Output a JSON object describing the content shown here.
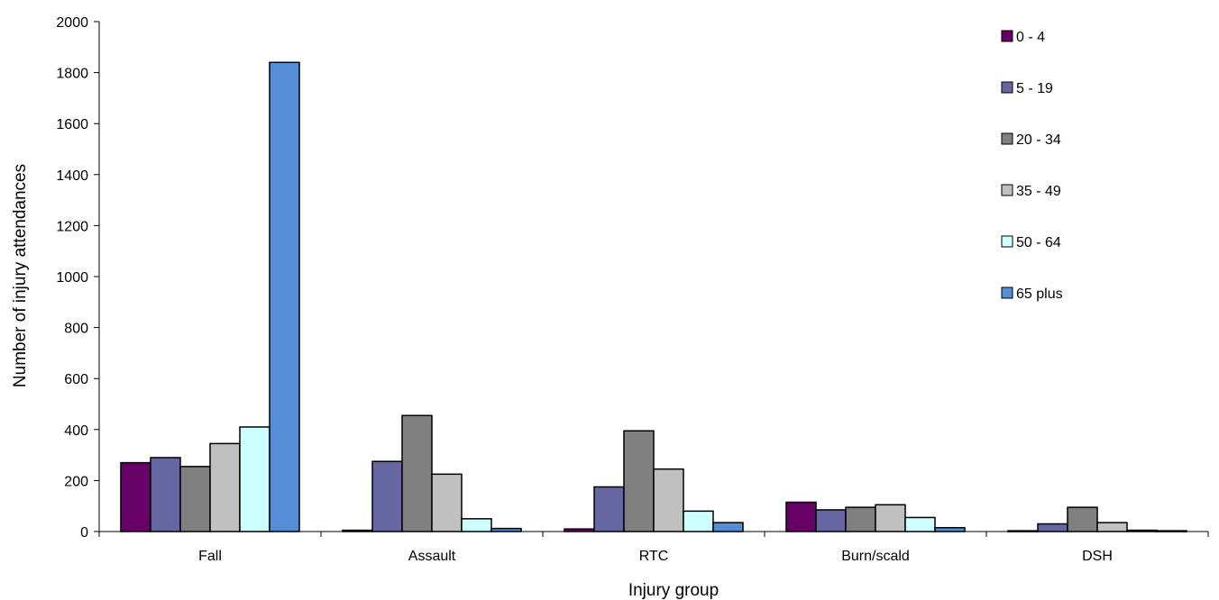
{
  "chart_data": {
    "type": "bar",
    "title": "",
    "xlabel": "Injury group",
    "ylabel": "Number of injury attendances",
    "ylim": [
      0,
      2000
    ],
    "yticks": [
      0,
      200,
      400,
      600,
      800,
      1000,
      1200,
      1400,
      1600,
      1800,
      2000
    ],
    "categories": [
      "Fall",
      "Assault",
      "RTC",
      "Burn/scald",
      "DSH"
    ],
    "series": [
      {
        "name": "0 - 4",
        "color": "#660066",
        "values": [
          270,
          5,
          10,
          115,
          3
        ]
      },
      {
        "name": "5 - 19",
        "color": "#6666a3",
        "values": [
          290,
          275,
          175,
          85,
          30
        ]
      },
      {
        "name": "20 - 34",
        "color": "#808080",
        "values": [
          255,
          455,
          395,
          95,
          95
        ]
      },
      {
        "name": "35 - 49",
        "color": "#c0c0c0",
        "values": [
          345,
          225,
          245,
          105,
          35
        ]
      },
      {
        "name": "50 - 64",
        "color": "#ccffff",
        "values": [
          410,
          50,
          80,
          55,
          5
        ]
      },
      {
        "name": "65 plus",
        "color": "#558ed5",
        "values": [
          1840,
          12,
          35,
          15,
          3
        ]
      }
    ],
    "grid": false,
    "legend": "right"
  }
}
